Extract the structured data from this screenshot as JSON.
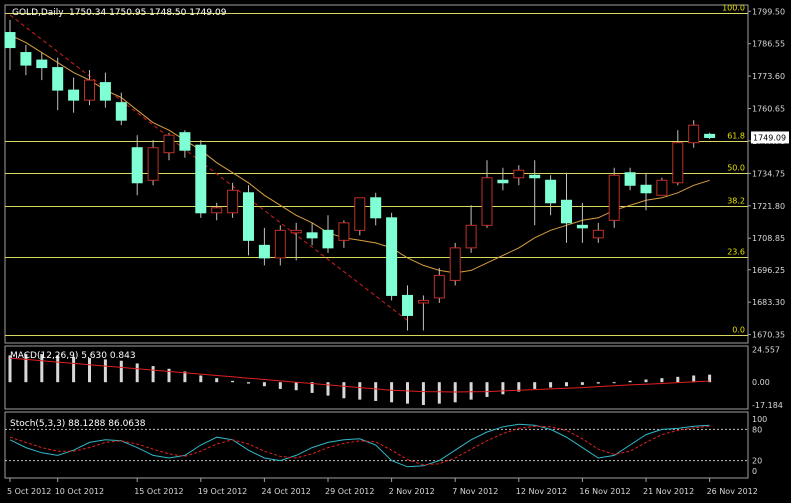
{
  "header": {
    "symbol_label": "GOLD,Daily",
    "ohlc_label": "1750.34 1750.95 1748.50 1749.09"
  },
  "colors": {
    "background": "#000000",
    "frame": "#a0a0a0",
    "bull_candle": "#000000",
    "bull_outline": "#c03028",
    "bear_candle": "#7fffd4",
    "wick": "#c0c0c0",
    "moving_average": "#d8a040",
    "trendline": "#d02020",
    "fib_line": "#d8d860",
    "fib_text": "#e8e000",
    "macd_hist": "#d8d8d8",
    "macd_signal": "#e02020",
    "stoch_main": "#30b8c8",
    "stoch_signal": "#e02020",
    "axis_text": "#d8d8d8",
    "price_tag_bg": "#ffffff",
    "price_tag_text": "#000000"
  },
  "chart_data": [
    {
      "type": "candlestick",
      "ylim": [
        1667.0,
        1802.0
      ],
      "y_ticks": [
        1799.5,
        1786.55,
        1773.6,
        1760.65,
        1747.7,
        1734.75,
        1721.8,
        1708.85,
        1696.25,
        1683.3,
        1670.35
      ],
      "y_tick_labels": [
        "1799.50",
        "1786.55",
        "1773.60",
        "1760.65",
        "1747.70",
        "1734.75",
        "1721.80",
        "1708.85",
        "1696.25",
        "1683.30",
        "1670.35"
      ],
      "current_price": 1749.09,
      "current_price_label": "1749.09",
      "x_tick_labels": [
        "5 Oct 2012",
        "10 Oct 2012",
        "15 Oct 2012",
        "19 Oct 2012",
        "24 Oct 2012",
        "29 Oct 2012",
        "2 Nov 2012",
        "7 Nov 2012",
        "12 Nov 2012",
        "16 Nov 2012",
        "21 Nov 2012",
        "26 Nov 2012"
      ],
      "x_tick_index": [
        0,
        3,
        8,
        12,
        16,
        20,
        24,
        28,
        32,
        36,
        40,
        44
      ],
      "candles": [
        {
          "o": 1791.0,
          "h": 1796.0,
          "l": 1776.0,
          "c": 1785.0
        },
        {
          "o": 1783.0,
          "h": 1786.0,
          "l": 1774.0,
          "c": 1778.0
        },
        {
          "o": 1780.0,
          "h": 1783.0,
          "l": 1772.0,
          "c": 1777.0
        },
        {
          "o": 1777.0,
          "h": 1781.0,
          "l": 1760.0,
          "c": 1768.0
        },
        {
          "o": 1768.0,
          "h": 1773.0,
          "l": 1759.0,
          "c": 1764.0
        },
        {
          "o": 1764.0,
          "h": 1776.0,
          "l": 1762.0,
          "c": 1772.0
        },
        {
          "o": 1771.0,
          "h": 1775.0,
          "l": 1761.0,
          "c": 1764.0
        },
        {
          "o": 1763.0,
          "h": 1767.0,
          "l": 1754.0,
          "c": 1756.0
        },
        {
          "o": 1745.0,
          "h": 1750.0,
          "l": 1726.0,
          "c": 1731.0
        },
        {
          "o": 1732.0,
          "h": 1748.0,
          "l": 1730.0,
          "c": 1745.0
        },
        {
          "o": 1743.0,
          "h": 1751.0,
          "l": 1740.0,
          "c": 1750.0
        },
        {
          "o": 1751.0,
          "h": 1752.0,
          "l": 1741.0,
          "c": 1744.0
        },
        {
          "o": 1746.0,
          "h": 1748.0,
          "l": 1717.0,
          "c": 1719.0
        },
        {
          "o": 1719.0,
          "h": 1723.0,
          "l": 1716.0,
          "c": 1721.0
        },
        {
          "o": 1719.0,
          "h": 1731.0,
          "l": 1717.0,
          "c": 1728.0
        },
        {
          "o": 1727.0,
          "h": 1730.0,
          "l": 1702.0,
          "c": 1708.0
        },
        {
          "o": 1706.0,
          "h": 1713.0,
          "l": 1698.0,
          "c": 1701.0
        },
        {
          "o": 1701.0,
          "h": 1714.0,
          "l": 1698.0,
          "c": 1712.0
        },
        {
          "o": 1711.0,
          "h": 1715.0,
          "l": 1700.0,
          "c": 1712.0
        },
        {
          "o": 1711.0,
          "h": 1715.0,
          "l": 1706.0,
          "c": 1709.0
        },
        {
          "o": 1712.0,
          "h": 1718.0,
          "l": 1703.0,
          "c": 1705.0
        },
        {
          "o": 1708.0,
          "h": 1716.0,
          "l": 1705.0,
          "c": 1715.0
        },
        {
          "o": 1712.0,
          "h": 1725.0,
          "l": 1710.0,
          "c": 1725.0
        },
        {
          "o": 1725.0,
          "h": 1727.0,
          "l": 1714.0,
          "c": 1717.0
        },
        {
          "o": 1717.0,
          "h": 1719.0,
          "l": 1684.0,
          "c": 1686.0
        },
        {
          "o": 1686.0,
          "h": 1690.0,
          "l": 1672.0,
          "c": 1678.0
        },
        {
          "o": 1683.0,
          "h": 1686.0,
          "l": 1672.0,
          "c": 1684.0
        },
        {
          "o": 1685.0,
          "h": 1697.0,
          "l": 1683.0,
          "c": 1694.0
        },
        {
          "o": 1692.0,
          "h": 1707.0,
          "l": 1690.0,
          "c": 1705.0
        },
        {
          "o": 1705.0,
          "h": 1722.0,
          "l": 1703.0,
          "c": 1714.0
        },
        {
          "o": 1714.0,
          "h": 1740.0,
          "l": 1713.0,
          "c": 1733.0
        },
        {
          "o": 1732.0,
          "h": 1737.0,
          "l": 1728.0,
          "c": 1731.0
        },
        {
          "o": 1733.0,
          "h": 1738.0,
          "l": 1730.0,
          "c": 1736.0
        },
        {
          "o": 1734.0,
          "h": 1740.0,
          "l": 1714.0,
          "c": 1733.0
        },
        {
          "o": 1732.0,
          "h": 1734.0,
          "l": 1718.0,
          "c": 1723.0
        },
        {
          "o": 1724.0,
          "h": 1735.0,
          "l": 1707.0,
          "c": 1715.0
        },
        {
          "o": 1714.0,
          "h": 1723.0,
          "l": 1707.0,
          "c": 1713.0
        },
        {
          "o": 1709.0,
          "h": 1715.0,
          "l": 1707.0,
          "c": 1712.0
        },
        {
          "o": 1716.0,
          "h": 1737.0,
          "l": 1713.0,
          "c": 1734.0
        },
        {
          "o": 1735.0,
          "h": 1737.0,
          "l": 1728.0,
          "c": 1730.0
        },
        {
          "o": 1730.0,
          "h": 1735.0,
          "l": 1720.0,
          "c": 1727.0
        },
        {
          "o": 1726.0,
          "h": 1733.0,
          "l": 1726.0,
          "c": 1732.0
        },
        {
          "o": 1731.0,
          "h": 1752.0,
          "l": 1730.0,
          "c": 1747.0
        },
        {
          "o": 1747.0,
          "h": 1756.0,
          "l": 1745.0,
          "c": 1754.0
        },
        {
          "o": 1750.34,
          "h": 1750.95,
          "l": 1748.5,
          "c": 1749.09
        }
      ],
      "moving_average": [
        1790,
        1787,
        1783,
        1779,
        1775,
        1772,
        1768,
        1765,
        1760,
        1755,
        1752,
        1748,
        1744,
        1739,
        1735,
        1731,
        1726,
        1722,
        1718,
        1715,
        1711,
        1709,
        1708,
        1707,
        1705,
        1701,
        1698,
        1696,
        1695,
        1696,
        1699,
        1702,
        1705,
        1709,
        1712,
        1714,
        1716,
        1717,
        1720,
        1722,
        1724,
        1725,
        1727,
        1730,
        1732
      ],
      "trendline": {
        "from": [
          0,
          1798
        ],
        "to": [
          25,
          1676
        ]
      },
      "fib_levels": [
        {
          "label": "100.0",
          "value": 1799.0
        },
        {
          "label": "61.8",
          "value": 1747.7
        },
        {
          "label": "50.0",
          "value": 1735.0
        },
        {
          "label": "38.2",
          "value": 1721.8
        },
        {
          "label": "23.6",
          "value": 1701.5
        },
        {
          "label": "0.0",
          "value": 1670.3
        }
      ]
    },
    {
      "type": "bar",
      "title": "MACD(12,26,9) 5.630 0.843",
      "ylim": [
        -20.0,
        27.0
      ],
      "y_ticks": [
        24.557,
        0.0,
        -17.184
      ],
      "y_tick_labels": [
        "24.557",
        "0.00",
        "-17.184"
      ],
      "values": [
        20,
        21,
        21,
        20,
        19,
        18,
        17,
        16,
        14,
        12,
        10,
        8,
        5,
        3,
        1,
        -1,
        -3,
        -5,
        -6,
        -8,
        -10,
        -12,
        -13,
        -14,
        -15,
        -16,
        -17,
        -16,
        -15,
        -13,
        -11,
        -9,
        -7,
        -5,
        -4,
        -3,
        -2,
        -1,
        0,
        1,
        2,
        3,
        4,
        5,
        5.63
      ],
      "signal": [
        18,
        17,
        16,
        15,
        14,
        13,
        12,
        11,
        10,
        9,
        8,
        7,
        6,
        5,
        4,
        3,
        2,
        1,
        0,
        -1,
        -2,
        -3,
        -4,
        -5,
        -6,
        -6.5,
        -7,
        -7.2,
        -7.3,
        -7.2,
        -7,
        -6.5,
        -6,
        -5.5,
        -5,
        -4.5,
        -4,
        -3.3,
        -2.6,
        -2,
        -1.5,
        -1,
        -0.3,
        0.3,
        0.843
      ]
    },
    {
      "type": "line",
      "title": "Stoch(5,3,3) 88.1288 86.0638",
      "ylim": [
        0,
        100
      ],
      "y_ticks": [
        100,
        80,
        20,
        0
      ],
      "y_tick_labels": [
        "100",
        "80",
        "20",
        "0"
      ],
      "levels": [
        80,
        20
      ],
      "series": [
        {
          "values": [
            60,
            45,
            35,
            30,
            40,
            55,
            60,
            58,
            45,
            30,
            25,
            30,
            50,
            65,
            60,
            40,
            25,
            20,
            30,
            45,
            55,
            60,
            62,
            50,
            20,
            8,
            10,
            20,
            40,
            60,
            75,
            85,
            90,
            88,
            80,
            65,
            45,
            25,
            30,
            50,
            70,
            80,
            82,
            86,
            88.13
          ]
        },
        {
          "values": [
            65,
            55,
            45,
            38,
            38,
            45,
            55,
            58,
            52,
            42,
            33,
            28,
            38,
            52,
            60,
            52,
            38,
            28,
            25,
            33,
            45,
            53,
            58,
            56,
            40,
            22,
            12,
            14,
            25,
            42,
            58,
            72,
            82,
            86,
            85,
            78,
            62,
            42,
            32,
            38,
            55,
            70,
            78,
            83,
            86.06
          ]
        }
      ]
    }
  ]
}
